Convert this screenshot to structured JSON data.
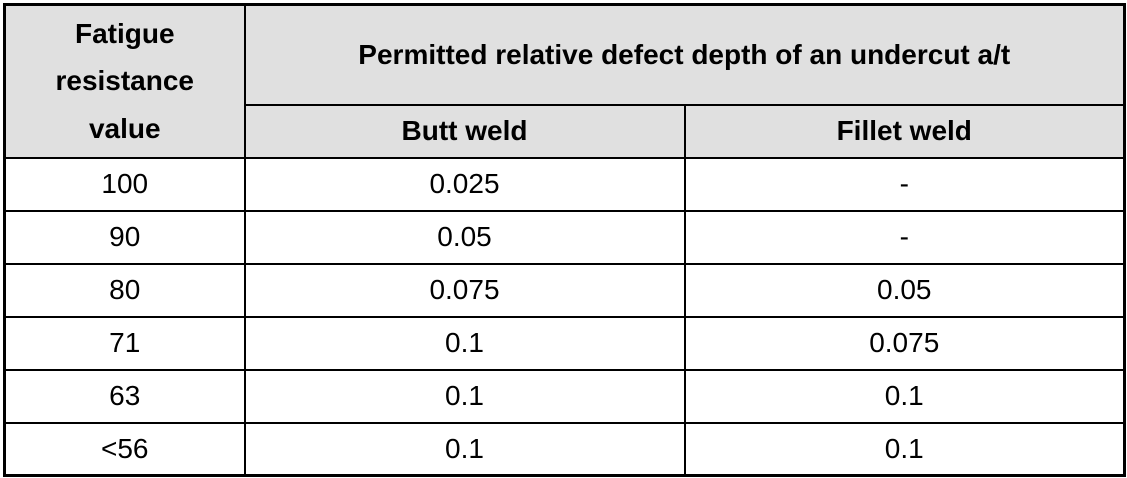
{
  "table": {
    "corner_header": "Fatigue resistance value",
    "group_header": "Permitted relative defect depth of an undercut a/t",
    "columns": {
      "butt": "Butt weld",
      "fillet": "Fillet weld"
    },
    "rows": [
      {
        "fatigue": "100",
        "butt": "0.025",
        "fillet": "-"
      },
      {
        "fatigue": "90",
        "butt": "0.05",
        "fillet": "-"
      },
      {
        "fatigue": "80",
        "butt": "0.075",
        "fillet": "0.05"
      },
      {
        "fatigue": "71",
        "butt": "0.1",
        "fillet": "0.075"
      },
      {
        "fatigue": "63",
        "butt": "0.1",
        "fillet": "0.1"
      },
      {
        "fatigue": "<56",
        "butt": "0.1",
        "fillet": "0.1"
      }
    ]
  },
  "colors": {
    "header_bg": "#e0e0e0",
    "border": "#000000",
    "text": "#000000",
    "background": "#ffffff"
  }
}
